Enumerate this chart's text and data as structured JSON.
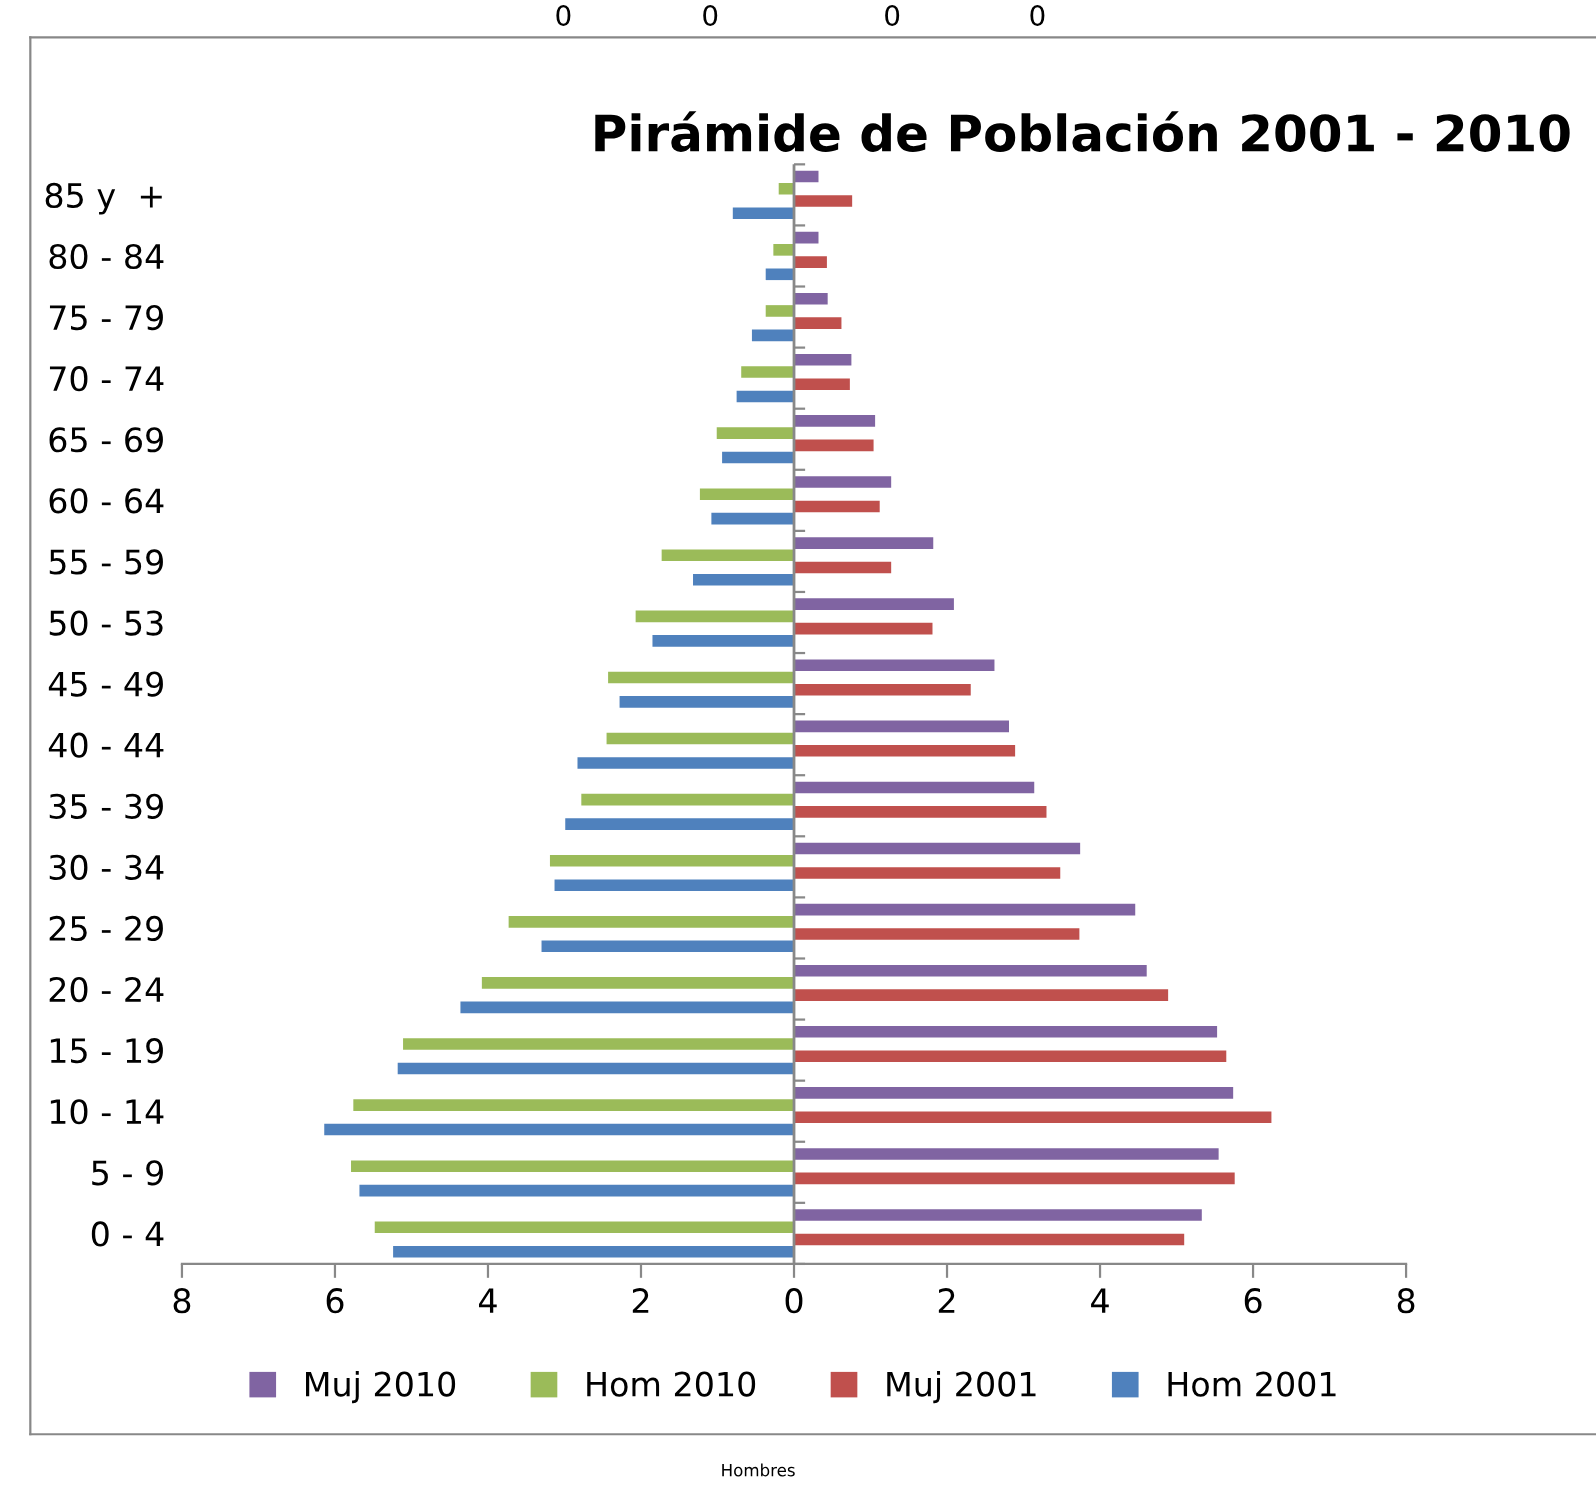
{
  "chart_data": {
    "type": "bar",
    "orientation": "horizontal",
    "title": "Pirámide de Población 2001 - 2010",
    "categories": [
      "85 y  +",
      "80 - 84",
      "75 - 79",
      "70 - 74",
      "65 - 69",
      "60 - 64",
      "55 - 59",
      "50 - 53",
      "45 - 49",
      "40 - 44",
      "35 - 39",
      "30 - 34",
      "25 - 29",
      "20 - 24",
      "15 - 19",
      "10 - 14",
      "5 - 9",
      "0 - 4"
    ],
    "series": [
      {
        "name": "Muj 2010",
        "color": "#8064a2",
        "values": [
          0.32,
          0.32,
          0.44,
          0.75,
          1.06,
          1.27,
          1.82,
          2.09,
          2.62,
          2.81,
          3.14,
          3.74,
          4.46,
          4.61,
          5.53,
          5.74,
          5.55,
          5.33
        ]
      },
      {
        "name": "Hom 2010",
        "color": "#9bbb59",
        "values": [
          -0.2,
          -0.27,
          -0.37,
          -0.69,
          -1.01,
          -1.23,
          -1.73,
          -2.07,
          -2.43,
          -2.45,
          -2.78,
          -3.19,
          -3.73,
          -4.08,
          -5.11,
          -5.76,
          -5.79,
          -5.48
        ]
      },
      {
        "name": "Muj 2001",
        "color": "#c0504d",
        "values": [
          0.76,
          0.43,
          0.62,
          0.73,
          1.04,
          1.12,
          1.27,
          1.81,
          2.31,
          2.89,
          3.3,
          3.48,
          3.73,
          4.89,
          5.65,
          6.24,
          5.76,
          5.1
        ]
      },
      {
        "name": "Hom 2001",
        "color": "#4f81bd",
        "values": [
          -0.8,
          -0.37,
          -0.55,
          -0.75,
          -0.94,
          -1.08,
          -1.32,
          -1.85,
          -2.28,
          -2.83,
          -2.99,
          -3.13,
          -3.3,
          -4.36,
          -5.18,
          -6.14,
          -5.68,
          -5.24
        ]
      }
    ],
    "xlim": [
      -8,
      8
    ],
    "xticks": [
      {
        "value": -8,
        "label": "8"
      },
      {
        "value": -6,
        "label": "6"
      },
      {
        "value": -4,
        "label": "4"
      },
      {
        "value": -2,
        "label": "2"
      },
      0,
      2,
      4,
      6,
      8
    ],
    "grid": false,
    "legend": "bottom",
    "ref_lines": [
      {
        "axis": "x",
        "value": 0,
        "color": "#888888"
      }
    ],
    "annotations": [
      "0",
      "0",
      "0",
      "0",
      "Hombres"
    ]
  }
}
